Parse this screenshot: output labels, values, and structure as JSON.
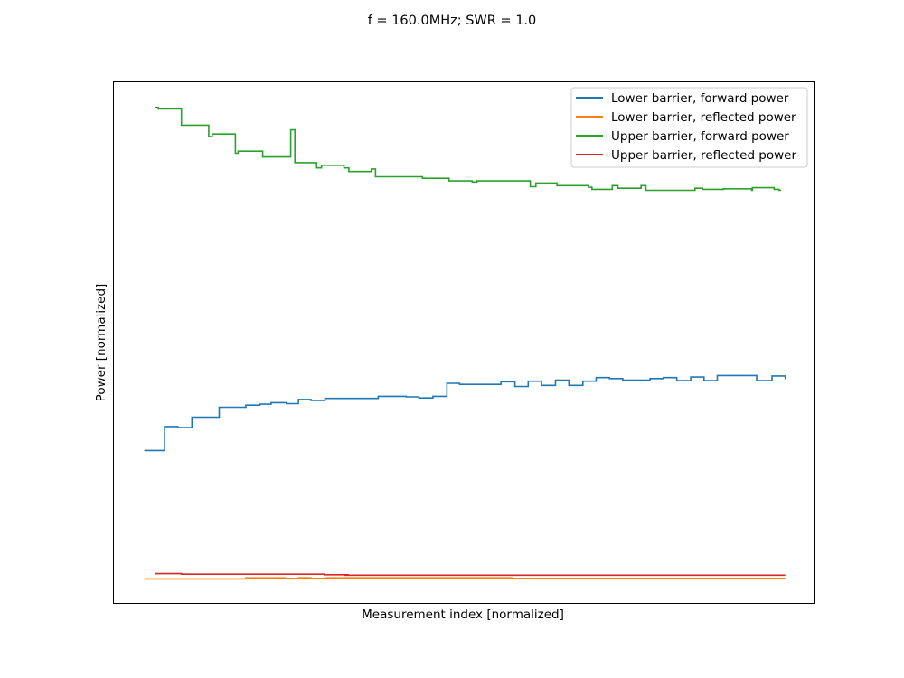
{
  "chart_data": {
    "type": "line",
    "title": "f = 160.0MHz; SWR = 1.0",
    "xlabel": "Measurement index [normalized]",
    "ylabel": "Power [normalized]",
    "x_ticks": "none",
    "y_ticks": "none",
    "xlim": [
      0,
      1
    ],
    "ylim": [
      0,
      1
    ],
    "grid": false,
    "legend_position": "top-right",
    "step_style": "post",
    "series": [
      {
        "name": "Lower barrier, forward power",
        "color": "#1f77b4",
        "points": [
          [
            0.044,
            0.293
          ],
          [
            0.073,
            0.339
          ],
          [
            0.092,
            0.337
          ],
          [
            0.112,
            0.357
          ],
          [
            0.151,
            0.376
          ],
          [
            0.189,
            0.38
          ],
          [
            0.209,
            0.382
          ],
          [
            0.225,
            0.385
          ],
          [
            0.247,
            0.383
          ],
          [
            0.264,
            0.391
          ],
          [
            0.282,
            0.389
          ],
          [
            0.302,
            0.393
          ],
          [
            0.378,
            0.397
          ],
          [
            0.418,
            0.396
          ],
          [
            0.436,
            0.394
          ],
          [
            0.456,
            0.397
          ],
          [
            0.476,
            0.422
          ],
          [
            0.494,
            0.42
          ],
          [
            0.553,
            0.425
          ],
          [
            0.573,
            0.416
          ],
          [
            0.592,
            0.426
          ],
          [
            0.611,
            0.418
          ],
          [
            0.631,
            0.428
          ],
          [
            0.65,
            0.418
          ],
          [
            0.67,
            0.426
          ],
          [
            0.689,
            0.433
          ],
          [
            0.708,
            0.431
          ],
          [
            0.727,
            0.428
          ],
          [
            0.766,
            0.431
          ],
          [
            0.785,
            0.433
          ],
          [
            0.804,
            0.427
          ],
          [
            0.824,
            0.434
          ],
          [
            0.843,
            0.427
          ],
          [
            0.862,
            0.437
          ],
          [
            0.918,
            0.427
          ],
          [
            0.94,
            0.436
          ],
          [
            0.959,
            0.43
          ]
        ]
      },
      {
        "name": "Lower barrier, reflected power",
        "color": "#ff7f0e",
        "points": [
          [
            0.044,
            0.047
          ],
          [
            0.189,
            0.049
          ],
          [
            0.245,
            0.048
          ],
          [
            0.264,
            0.049
          ],
          [
            0.282,
            0.048
          ],
          [
            0.302,
            0.049
          ],
          [
            0.57,
            0.048
          ],
          [
            0.59,
            0.048
          ],
          [
            0.959,
            0.048
          ]
        ]
      },
      {
        "name": "Upper barrier, forward power",
        "color": "#2ca02c",
        "points": [
          [
            0.06,
            0.951
          ],
          [
            0.064,
            0.948
          ],
          [
            0.097,
            0.917
          ],
          [
            0.136,
            0.895
          ],
          [
            0.141,
            0.9
          ],
          [
            0.174,
            0.863
          ],
          [
            0.178,
            0.867
          ],
          [
            0.213,
            0.856
          ],
          [
            0.253,
            0.908
          ],
          [
            0.259,
            0.845
          ],
          [
            0.29,
            0.835
          ],
          [
            0.297,
            0.84
          ],
          [
            0.329,
            0.835
          ],
          [
            0.336,
            0.828
          ],
          [
            0.368,
            0.833
          ],
          [
            0.374,
            0.818
          ],
          [
            0.441,
            0.815
          ],
          [
            0.479,
            0.81
          ],
          [
            0.512,
            0.808
          ],
          [
            0.519,
            0.81
          ],
          [
            0.595,
            0.799
          ],
          [
            0.603,
            0.806
          ],
          [
            0.633,
            0.801
          ],
          [
            0.678,
            0.798
          ],
          [
            0.683,
            0.794
          ],
          [
            0.712,
            0.801
          ],
          [
            0.72,
            0.796
          ],
          [
            0.753,
            0.801
          ],
          [
            0.76,
            0.792
          ],
          [
            0.83,
            0.796
          ],
          [
            0.841,
            0.794
          ],
          [
            0.871,
            0.795
          ],
          [
            0.911,
            0.792
          ],
          [
            0.912,
            0.797
          ],
          [
            0.943,
            0.794
          ],
          [
            0.95,
            0.792
          ],
          [
            0.953,
            0.792
          ]
        ]
      },
      {
        "name": "Upper barrier, reflected power",
        "color": "#d62728",
        "points": [
          [
            0.06,
            0.057
          ],
          [
            0.097,
            0.056
          ],
          [
            0.29,
            0.056
          ],
          [
            0.301,
            0.055
          ],
          [
            0.33,
            0.055
          ],
          [
            0.335,
            0.054
          ],
          [
            0.329,
            0.054
          ],
          [
            0.331,
            0.055
          ],
          [
            0.334,
            0.054
          ],
          [
            0.959,
            0.054
          ]
        ]
      }
    ]
  }
}
